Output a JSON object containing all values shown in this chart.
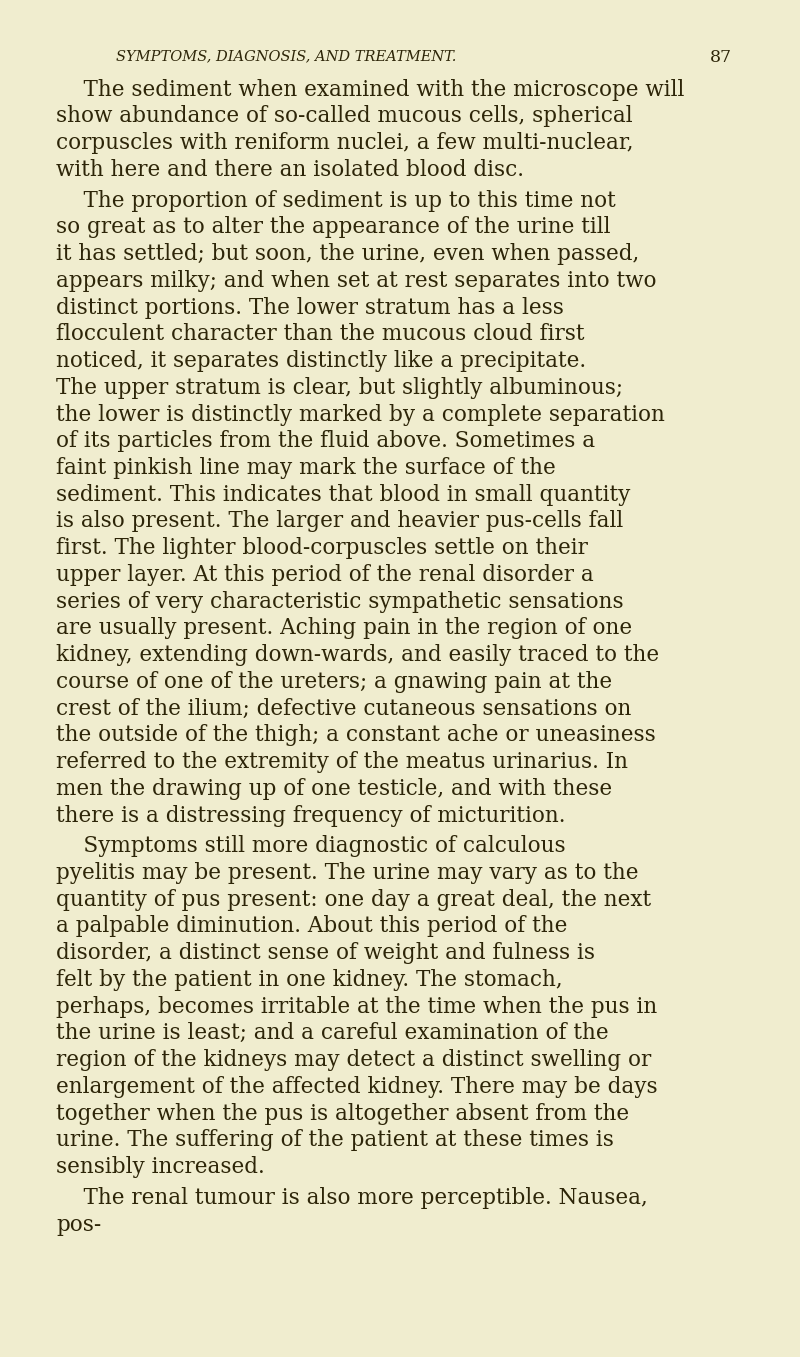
{
  "background_color": "#f0edcf",
  "page_width": 8.0,
  "page_height": 13.57,
  "dpi": 100,
  "header_text": "SYMPTOMS, DIAGNOSIS, AND TREATMENT.",
  "page_number": "87",
  "header_font_size": 10.5,
  "text_color": "#2d2508",
  "body_font_size": 15.5,
  "paragraphs": [
    {
      "indent": true,
      "text": "The sediment when examined with the microscope will show abundance of so-called mucous cells, spherical corpuscles with reniform nuclei, a few multi-nuclear, with here and there an isolated blood disc."
    },
    {
      "indent": true,
      "text": "The proportion of sediment is up to this time not so great as to alter the appearance of the urine till it has settled; but soon, the urine, even when passed, appears milky; and when set at rest separates into two distinct portions. The lower stratum has a less flocculent character than the mucous cloud first noticed, it separates distinctly like a precipitate. The upper stratum is clear, but slightly albuminous; the lower is distinctly marked by a complete separation of its particles from the fluid above. Sometimes a faint pinkish line may mark the surface of the sediment. This indicates that blood in small quantity is also present. The larger and heavier pus-cells fall first. The lighter blood-corpuscles settle on their upper layer. At this period of the renal disorder a series of very characteristic sympathetic sensations are usually present. Aching pain in the region of one kidney, extending down-wards, and easily traced to the course of one of the ureters; a gnawing pain at the crest of the ilium; defective cutaneous sensations on the outside of the thigh; a constant ache or uneasiness referred to the extremity of the meatus urinarius. In men the drawing up of one testicle, and with these there is a distressing frequency of micturition."
    },
    {
      "indent": true,
      "text": "Symptoms still more diagnostic of calculous pyelitis may be present. The urine may vary as to the quantity of pus present: one day a great deal, the next a palpable diminution. About this period of the disorder, a distinct sense of weight and fulness is felt by the patient in one kidney. The stomach, perhaps, becomes irritable at the time when the pus in the urine is least; and a careful examination of the region of the kidneys may detect a distinct swelling or enlargement of the affected kidney. There may be days together when the pus is altogether absent from the urine. The suffering of the patient at these times is sensibly increased."
    },
    {
      "indent": true,
      "text": "The renal tumour is also more perceptible. Nausea, pos-"
    }
  ]
}
